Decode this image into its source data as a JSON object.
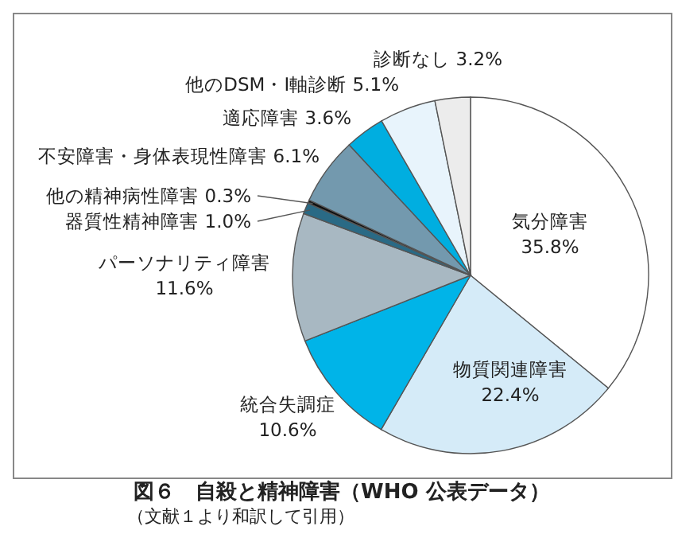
{
  "chart_data": {
    "type": "pie",
    "title": "図６　自殺と精神障害（WHO 公表データ）",
    "subtitle": "（文献１より和訳して引用）",
    "categories": [
      "気分障害",
      "物質関連障害",
      "統合失調症",
      "パーソナリティ障害",
      "器質性精神障害",
      "他の精神病性障害",
      "不安障害・身体表現性障害",
      "適応障害",
      "他のDSM・Ⅰ軸診断",
      "診断なし"
    ],
    "values": [
      35.8,
      22.4,
      10.6,
      11.6,
      1.0,
      0.3,
      6.1,
      3.6,
      5.1,
      3.2
    ],
    "value_labels": [
      "35.8%",
      "22.4%",
      "10.6%",
      "11.6%",
      "1.0%",
      "0.3%",
      "6.1%",
      "3.6%",
      "5.1%",
      "3.2%"
    ],
    "colors": [
      "#ffffff",
      "#d5ebf8",
      "#00b4e8",
      "#a8b8c2",
      "#2a6a85",
      "#111111",
      "#7399ae",
      "#00aee0",
      "#e8f4fc",
      "#ececec"
    ]
  }
}
